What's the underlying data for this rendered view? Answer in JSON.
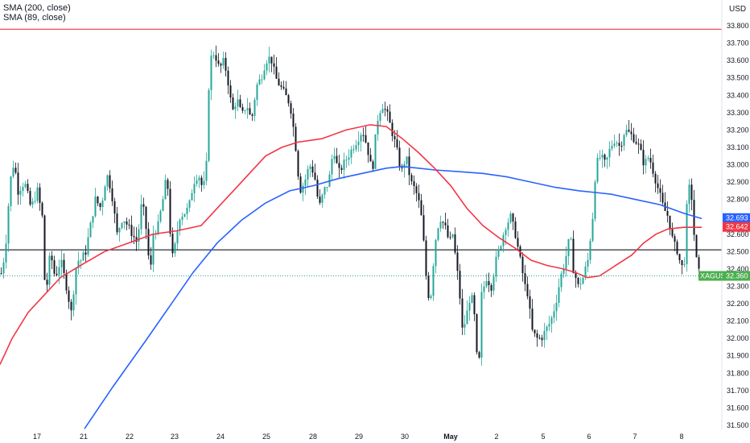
{
  "legend": {
    "sma200": "SMA (200, close)",
    "sma89": "SMA (89, close)"
  },
  "currency": "USD",
  "colors": {
    "up": "#26a69a",
    "candle": "#131722",
    "sma200": "#2962ff",
    "sma89": "#f23645",
    "grid": "#e0e3eb",
    "hline_black": "#131722",
    "hline_red": "#f23645",
    "price_badge": "#4caf50"
  },
  "chart_data": {
    "type": "candlestick",
    "symbol": "XAGUSD",
    "last_price": 32.36,
    "ylim": [
      31.45,
      33.85
    ],
    "y_ticks": [
      "31.500",
      "31.600",
      "31.700",
      "31.800",
      "31.900",
      "32.000",
      "32.100",
      "32.200",
      "32.300",
      "32.400",
      "32.500",
      "32.600",
      "32.700",
      "32.800",
      "32.900",
      "33.000",
      "33.100",
      "33.200",
      "33.300",
      "33.400",
      "33.500",
      "33.600",
      "33.700",
      "33.800"
    ],
    "x_ticks": [
      "17",
      "21",
      "22",
      "23",
      "24",
      "25",
      "28",
      "29",
      "30",
      "May",
      "2",
      "5",
      "6",
      "7",
      "8"
    ],
    "horizontal_lines": [
      {
        "value": 33.78,
        "color": "#f23645"
      },
      {
        "value": 32.51,
        "color": "#131722"
      }
    ],
    "badges": [
      {
        "label": "32.693",
        "value": 32.693,
        "color": "#2962ff"
      },
      {
        "label": "32.642",
        "value": 32.642,
        "color": "#f23645"
      },
      {
        "label": "32.360",
        "value": 32.36,
        "color": "#4caf50",
        "symbol": "XAGUSD"
      }
    ],
    "close_path": [
      [
        0,
        32.35
      ],
      [
        6,
        32.5
      ],
      [
        12,
        32.9
      ],
      [
        17,
        33.02
      ],
      [
        22,
        32.85
      ],
      [
        30,
        32.9
      ],
      [
        38,
        32.75
      ],
      [
        46,
        32.85
      ],
      [
        52,
        32.7
      ],
      [
        56,
        32.22
      ],
      [
        62,
        32.5
      ],
      [
        68,
        32.35
      ],
      [
        75,
        32.45
      ],
      [
        82,
        32.3
      ],
      [
        88,
        32.15
      ],
      [
        95,
        32.45
      ],
      [
        100,
        32.45
      ],
      [
        106,
        32.5
      ],
      [
        112,
        32.65
      ],
      [
        118,
        32.8
      ],
      [
        125,
        32.75
      ],
      [
        132,
        32.95
      ],
      [
        138,
        32.85
      ],
      [
        145,
        32.6
      ],
      [
        152,
        32.7
      ],
      [
        158,
        32.65
      ],
      [
        164,
        32.6
      ],
      [
        170,
        32.55
      ],
      [
        176,
        32.8
      ],
      [
        182,
        32.6
      ],
      [
        186,
        32.35
      ],
      [
        190,
        32.6
      ],
      [
        196,
        32.65
      ],
      [
        202,
        32.8
      ],
      [
        207,
        32.95
      ],
      [
        213,
        32.45
      ],
      [
        218,
        32.55
      ],
      [
        222,
        32.7
      ],
      [
        228,
        32.72
      ],
      [
        234,
        32.75
      ],
      [
        240,
        32.9
      ],
      [
        246,
        32.95
      ],
      [
        252,
        32.85
      ],
      [
        256,
        33.0
      ],
      [
        260,
        33.6
      ],
      [
        266,
        33.65
      ],
      [
        272,
        33.55
      ],
      [
        278,
        33.6
      ],
      [
        284,
        33.45
      ],
      [
        288,
        33.3
      ],
      [
        294,
        33.38
      ],
      [
        300,
        33.28
      ],
      [
        306,
        33.35
      ],
      [
        312,
        33.25
      ],
      [
        318,
        33.45
      ],
      [
        324,
        33.5
      ],
      [
        330,
        33.6
      ],
      [
        336,
        33.62
      ],
      [
        342,
        33.5
      ],
      [
        348,
        33.45
      ],
      [
        354,
        33.4
      ],
      [
        360,
        33.35
      ],
      [
        366,
        33.15
      ],
      [
        372,
        32.85
      ],
      [
        378,
        32.9
      ],
      [
        384,
        33.0
      ],
      [
        390,
        32.95
      ],
      [
        396,
        32.75
      ],
      [
        402,
        32.85
      ],
      [
        408,
        32.9
      ],
      [
        414,
        33.1
      ],
      [
        420,
        32.95
      ],
      [
        426,
        33.0
      ],
      [
        432,
        33.05
      ],
      [
        438,
        33.1
      ],
      [
        444,
        33.15
      ],
      [
        450,
        33.2
      ],
      [
        456,
        33.1
      ],
      [
        462,
        32.95
      ],
      [
        468,
        33.25
      ],
      [
        474,
        33.35
      ],
      [
        480,
        33.3
      ],
      [
        486,
        33.2
      ],
      [
        492,
        33.1
      ],
      [
        498,
        32.95
      ],
      [
        504,
        33.05
      ],
      [
        510,
        32.9
      ],
      [
        516,
        32.85
      ],
      [
        522,
        32.75
      ],
      [
        526,
        32.55
      ],
      [
        530,
        32.3
      ],
      [
        534,
        32.2
      ],
      [
        540,
        32.55
      ],
      [
        546,
        32.7
      ],
      [
        552,
        32.65
      ],
      [
        558,
        32.55
      ],
      [
        562,
        32.6
      ],
      [
        566,
        32.45
      ],
      [
        570,
        32.3
      ],
      [
        574,
        32.05
      ],
      [
        578,
        32.1
      ],
      [
        584,
        32.25
      ],
      [
        588,
        32.2
      ],
      [
        594,
        31.75
      ],
      [
        598,
        32.25
      ],
      [
        604,
        32.35
      ],
      [
        610,
        32.3
      ],
      [
        616,
        32.45
      ],
      [
        622,
        32.55
      ],
      [
        628,
        32.65
      ],
      [
        634,
        32.7
      ],
      [
        640,
        32.6
      ],
      [
        646,
        32.45
      ],
      [
        652,
        32.3
      ],
      [
        656,
        32.25
      ],
      [
        660,
        32.05
      ],
      [
        666,
        32.0
      ],
      [
        672,
        32.0
      ],
      [
        678,
        32.05
      ],
      [
        684,
        32.1
      ],
      [
        690,
        32.2
      ],
      [
        696,
        32.35
      ],
      [
        702,
        32.45
      ],
      [
        708,
        32.6
      ],
      [
        712,
        32.4
      ],
      [
        718,
        32.3
      ],
      [
        724,
        32.35
      ],
      [
        730,
        32.45
      ],
      [
        736,
        32.7
      ],
      [
        740,
        33.0
      ],
      [
        746,
        33.05
      ],
      [
        752,
        33.0
      ],
      [
        758,
        33.1
      ],
      [
        764,
        33.15
      ],
      [
        770,
        33.1
      ],
      [
        776,
        33.2
      ],
      [
        782,
        33.18
      ],
      [
        788,
        33.15
      ],
      [
        794,
        33.1
      ],
      [
        800,
        33.0
      ],
      [
        806,
        33.05
      ],
      [
        812,
        32.95
      ],
      [
        818,
        32.85
      ],
      [
        824,
        32.75
      ],
      [
        830,
        32.7
      ],
      [
        836,
        32.55
      ],
      [
        842,
        32.5
      ],
      [
        846,
        32.4
      ],
      [
        850,
        32.45
      ],
      [
        854,
        32.85
      ],
      [
        858,
        32.88
      ],
      [
        862,
        32.6
      ],
      [
        866,
        32.4
      ],
      [
        870,
        32.36
      ]
    ],
    "sma200_path": [
      [
        105,
        31.48
      ],
      [
        140,
        31.72
      ],
      [
        180,
        31.98
      ],
      [
        210,
        32.18
      ],
      [
        240,
        32.38
      ],
      [
        270,
        32.55
      ],
      [
        300,
        32.68
      ],
      [
        330,
        32.78
      ],
      [
        360,
        32.85
      ],
      [
        390,
        32.88
      ],
      [
        420,
        32.92
      ],
      [
        450,
        32.95
      ],
      [
        480,
        32.98
      ],
      [
        500,
        32.99
      ],
      [
        520,
        32.98
      ],
      [
        540,
        32.97
      ],
      [
        570,
        32.96
      ],
      [
        600,
        32.95
      ],
      [
        630,
        32.93
      ],
      [
        660,
        32.9
      ],
      [
        690,
        32.87
      ],
      [
        720,
        32.85
      ],
      [
        740,
        32.84
      ],
      [
        760,
        32.83
      ],
      [
        790,
        32.8
      ],
      [
        820,
        32.77
      ],
      [
        850,
        32.72
      ],
      [
        872,
        32.69
      ]
    ],
    "sma89_path": [
      [
        0,
        31.85
      ],
      [
        15,
        32.0
      ],
      [
        35,
        32.15
      ],
      [
        55,
        32.25
      ],
      [
        75,
        32.35
      ],
      [
        100,
        32.42
      ],
      [
        130,
        32.5
      ],
      [
        160,
        32.55
      ],
      [
        190,
        32.6
      ],
      [
        220,
        32.62
      ],
      [
        250,
        32.65
      ],
      [
        270,
        32.75
      ],
      [
        290,
        32.85
      ],
      [
        310,
        32.95
      ],
      [
        330,
        33.05
      ],
      [
        350,
        33.1
      ],
      [
        370,
        33.13
      ],
      [
        400,
        33.15
      ],
      [
        430,
        33.2
      ],
      [
        460,
        33.23
      ],
      [
        480,
        33.22
      ],
      [
        500,
        33.15
      ],
      [
        520,
        33.07
      ],
      [
        540,
        32.98
      ],
      [
        560,
        32.88
      ],
      [
        580,
        32.75
      ],
      [
        600,
        32.65
      ],
      [
        620,
        32.58
      ],
      [
        640,
        32.52
      ],
      [
        660,
        32.45
      ],
      [
        680,
        32.42
      ],
      [
        700,
        32.4
      ],
      [
        715,
        32.38
      ],
      [
        730,
        32.35
      ],
      [
        745,
        32.36
      ],
      [
        765,
        32.42
      ],
      [
        785,
        32.48
      ],
      [
        800,
        32.55
      ],
      [
        815,
        32.6
      ],
      [
        830,
        32.63
      ],
      [
        850,
        32.64
      ],
      [
        872,
        32.64
      ]
    ]
  }
}
